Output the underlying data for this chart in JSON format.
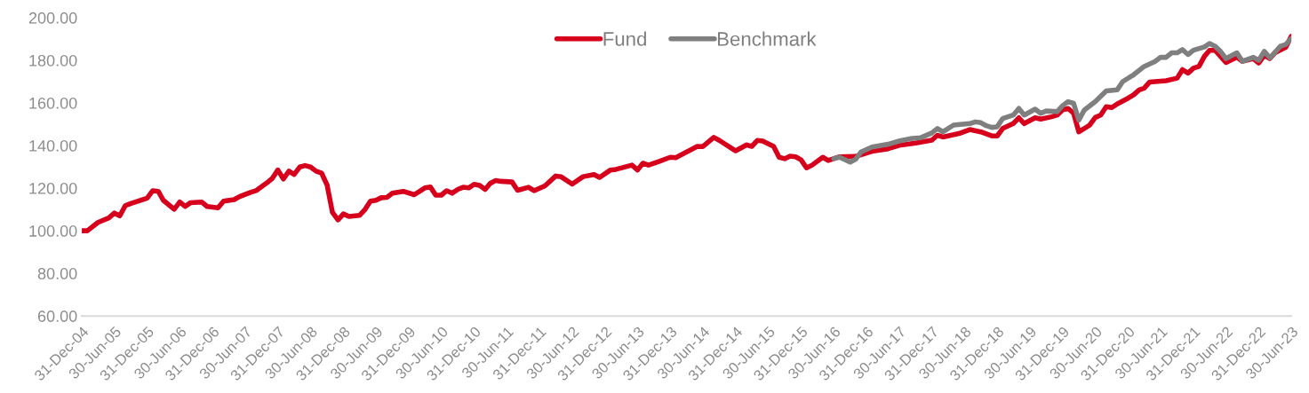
{
  "chart_data": {
    "type": "line",
    "series": [
      {
        "name": "Fund",
        "color": "#d7001c",
        "x": [
          "2004-12",
          "2005-01",
          "2005-03",
          "2005-05",
          "2005-06",
          "2005-07",
          "2005-08",
          "2005-09",
          "2005-12",
          "2006-01",
          "2006-02",
          "2006-03",
          "2006-05",
          "2006-06",
          "2006-07",
          "2006-08",
          "2006-10",
          "2006-11",
          "2007-01",
          "2007-02",
          "2007-04",
          "2007-05",
          "2007-07",
          "2007-08",
          "2007-10",
          "2007-11",
          "2007-12",
          "2008-01",
          "2008-02",
          "2008-03",
          "2008-04",
          "2008-05",
          "2008-06",
          "2008-07",
          "2008-08",
          "2008-09",
          "2008-10",
          "2008-11",
          "2008-12",
          "2009-01",
          "2009-03",
          "2009-04",
          "2009-05",
          "2009-06",
          "2009-07",
          "2009-08",
          "2009-09",
          "2009-11",
          "2010-01",
          "2010-03",
          "2010-04",
          "2010-05",
          "2010-06",
          "2010-07",
          "2010-08",
          "2010-09",
          "2010-10",
          "2010-11",
          "2010-12",
          "2011-01",
          "2011-02",
          "2011-03",
          "2011-04",
          "2011-05",
          "2011-07",
          "2011-08",
          "2011-10",
          "2011-11",
          "2012-01",
          "2012-03",
          "2012-04",
          "2012-06",
          "2012-08",
          "2012-10",
          "2012-11",
          "2013-01",
          "2013-02",
          "2013-05",
          "2013-06",
          "2013-07",
          "2013-08",
          "2013-10",
          "2013-12",
          "2014-01",
          "2014-05",
          "2014-06",
          "2014-08",
          "2014-09",
          "2014-12",
          "2015-02",
          "2015-03",
          "2015-04",
          "2015-05",
          "2015-07",
          "2015-08",
          "2015-09",
          "2015-10",
          "2015-11",
          "2015-12",
          "2016-01",
          "2016-02",
          "2016-04",
          "2016-05",
          "2016-07",
          "2016-10",
          "2017-01",
          "2017-04",
          "2017-06",
          "2017-09",
          "2017-12",
          "2018-01",
          "2018-02",
          "2018-05",
          "2018-07",
          "2018-09",
          "2018-11",
          "2018-12",
          "2019-01",
          "2019-03",
          "2019-04",
          "2019-05",
          "2019-07",
          "2019-08",
          "2019-10",
          "2019-11",
          "2019-12",
          "2020-01",
          "2020-02",
          "2020-03",
          "2020-05",
          "2020-06",
          "2020-07",
          "2020-08",
          "2020-09",
          "2020-10",
          "2020-12",
          "2021-01",
          "2021-02",
          "2021-03",
          "2021-04",
          "2021-07",
          "2021-09",
          "2021-10",
          "2021-11",
          "2021-12",
          "2022-01",
          "2022-02",
          "2022-03",
          "2022-04",
          "2022-06",
          "2022-08",
          "2022-09",
          "2022-11",
          "2022-12",
          "2023-01",
          "2023-02",
          "2023-03",
          "2023-05",
          "2023-06"
        ],
        "values": [
          100,
          100,
          103.9,
          106,
          108.3,
          107,
          111.8,
          112.8,
          115.3,
          118.8,
          118.5,
          114.3,
          110.1,
          113.5,
          111.4,
          113.2,
          113.5,
          111.4,
          110.8,
          113.9,
          114.6,
          116,
          118,
          118.8,
          122.5,
          124.7,
          128.5,
          124.3,
          128,
          126.4,
          129.9,
          130.6,
          129.9,
          128,
          127.1,
          121.5,
          108.6,
          105.1,
          107.9,
          106.7,
          107.2,
          110,
          113.9,
          114.3,
          115.5,
          115.7,
          117.6,
          118.5,
          116.9,
          120.1,
          120.5,
          116.7,
          116.7,
          118.8,
          117.6,
          119.4,
          120.4,
          120.1,
          121.8,
          121.3,
          119.4,
          122.2,
          123.6,
          123.2,
          122.9,
          119,
          120.4,
          118.8,
          121.1,
          125.7,
          125.3,
          121.9,
          125.4,
          126.4,
          125,
          128.5,
          128.8,
          130.8,
          128.5,
          131.7,
          130.8,
          132.6,
          134.5,
          134.3,
          139.6,
          139.5,
          143.8,
          142.4,
          137.5,
          140.3,
          139.6,
          142.4,
          142.1,
          139.6,
          134.5,
          133.8,
          135,
          134.7,
          133.3,
          129.5,
          130.8,
          134.5,
          133,
          134.7,
          134.9,
          137.3,
          138.5,
          140.1,
          141.2,
          142.5,
          144.8,
          144,
          145.6,
          147.5,
          146.4,
          144.5,
          144.5,
          148,
          150.3,
          153,
          150.3,
          153,
          152.4,
          153.5,
          154.3,
          156.7,
          157.4,
          155.1,
          146.4,
          149.6,
          153.2,
          154.3,
          158.2,
          157.8,
          159.5,
          162.2,
          163.8,
          166.1,
          166.9,
          169.8,
          170.4,
          171.6,
          175.6,
          174,
          176.3,
          177.1,
          181.9,
          184.7,
          184.7,
          179,
          181.4,
          179.5,
          180.8,
          178.7,
          182.3,
          180.8,
          183.5,
          186.1,
          191.3
        ]
      },
      {
        "name": "Benchmark",
        "color": "#7f7f7f",
        "x": [
          "2016-06",
          "2016-07",
          "2016-09",
          "2016-10",
          "2016-11",
          "2017-01",
          "2017-04",
          "2017-06",
          "2017-08",
          "2017-10",
          "2017-12",
          "2018-01",
          "2018-02",
          "2018-04",
          "2018-07",
          "2018-08",
          "2018-09",
          "2018-10",
          "2018-11",
          "2018-12",
          "2019-01",
          "2019-03",
          "2019-04",
          "2019-05",
          "2019-07",
          "2019-08",
          "2019-09",
          "2019-11",
          "2019-12",
          "2020-01",
          "2020-02",
          "2020-03",
          "2020-04",
          "2020-06",
          "2020-08",
          "2020-10",
          "2020-11",
          "2021-01",
          "2021-03",
          "2021-05",
          "2021-06",
          "2021-07",
          "2021-08",
          "2021-09",
          "2021-10",
          "2021-11",
          "2021-12",
          "2022-02",
          "2022-03",
          "2022-04",
          "2022-05",
          "2022-06",
          "2022-08",
          "2022-09",
          "2022-11",
          "2022-12",
          "2023-01",
          "2023-02",
          "2023-04",
          "2023-05",
          "2023-06"
        ],
        "values": [
          133.8,
          134.6,
          132.2,
          133.5,
          137,
          139.3,
          140.6,
          142.1,
          143.2,
          143.7,
          145.9,
          148,
          146.4,
          149.6,
          150.3,
          151.1,
          150.7,
          149.3,
          148.5,
          148.8,
          152.7,
          154.3,
          157.4,
          154.3,
          157.1,
          155.1,
          156.2,
          155.9,
          158.7,
          160.6,
          159.8,
          151.9,
          156.7,
          160.6,
          165.6,
          166.1,
          170,
          173.2,
          177.1,
          179.5,
          181.4,
          181.4,
          183.5,
          183.5,
          185,
          182.7,
          184.7,
          186.3,
          187.9,
          186.6,
          184.2,
          180.8,
          183.5,
          179.5,
          181.4,
          180,
          184.2,
          181.1,
          186.6,
          187.4,
          190.2
        ]
      }
    ],
    "xlim": [
      "2004-12",
      "2023-06"
    ],
    "xticks": [
      {
        "value": "2004-12",
        "label": "31-Dec-04"
      },
      {
        "value": "2005-06",
        "label": "30-Jun-05"
      },
      {
        "value": "2005-12",
        "label": "31-Dec-05"
      },
      {
        "value": "2006-06",
        "label": "30-Jun-06"
      },
      {
        "value": "2006-12",
        "label": "31-Dec-06"
      },
      {
        "value": "2007-06",
        "label": "30-Jun-07"
      },
      {
        "value": "2007-12",
        "label": "31-Dec-07"
      },
      {
        "value": "2008-06",
        "label": "30-Jun-08"
      },
      {
        "value": "2008-12",
        "label": "31-Dec-08"
      },
      {
        "value": "2009-06",
        "label": "30-Jun-09"
      },
      {
        "value": "2009-12",
        "label": "31-Dec-09"
      },
      {
        "value": "2010-06",
        "label": "30-Jun-10"
      },
      {
        "value": "2010-12",
        "label": "31-Dec-10"
      },
      {
        "value": "2011-06",
        "label": "30-Jun-11"
      },
      {
        "value": "2011-12",
        "label": "31-Dec-11"
      },
      {
        "value": "2012-06",
        "label": "30-Jun-12"
      },
      {
        "value": "2012-12",
        "label": "31-Dec-12"
      },
      {
        "value": "2013-06",
        "label": "30-Jun-13"
      },
      {
        "value": "2013-12",
        "label": "31-Dec-13"
      },
      {
        "value": "2014-06",
        "label": "30-Jun-14"
      },
      {
        "value": "2014-12",
        "label": "31-Dec-14"
      },
      {
        "value": "2015-06",
        "label": "30-Jun-15"
      },
      {
        "value": "2015-12",
        "label": "31-Dec-15"
      },
      {
        "value": "2016-06",
        "label": "30-Jun-16"
      },
      {
        "value": "2016-12",
        "label": "31-Dec-16"
      },
      {
        "value": "2017-06",
        "label": "30-Jun-17"
      },
      {
        "value": "2017-12",
        "label": "31-Dec-17"
      },
      {
        "value": "2018-06",
        "label": "30-Jun-18"
      },
      {
        "value": "2018-12",
        "label": "31-Dec-18"
      },
      {
        "value": "2019-06",
        "label": "30-Jun-19"
      },
      {
        "value": "2019-12",
        "label": "31-Dec-19"
      },
      {
        "value": "2020-06",
        "label": "30-Jun-20"
      },
      {
        "value": "2020-12",
        "label": "31-Dec-20"
      },
      {
        "value": "2021-06",
        "label": "30-Jun-21"
      },
      {
        "value": "2021-12",
        "label": "31-Dec-21"
      },
      {
        "value": "2022-06",
        "label": "30-Jun-22"
      },
      {
        "value": "2022-12",
        "label": "31-Dec-22"
      },
      {
        "value": "2023-06",
        "label": "30-Jun-23"
      }
    ],
    "ylim": [
      60,
      200
    ],
    "yticks": [
      {
        "value": 60,
        "label": "60.00"
      },
      {
        "value": 80,
        "label": "80.00"
      },
      {
        "value": 100,
        "label": "100.00"
      },
      {
        "value": 120,
        "label": "120.00"
      },
      {
        "value": 140,
        "label": "140.00"
      },
      {
        "value": 160,
        "label": "160.00"
      },
      {
        "value": 180,
        "label": "180.00"
      },
      {
        "value": 200,
        "label": "200.00"
      }
    ],
    "grid": false,
    "legend": "top",
    "marker": "none",
    "line_style": "solid"
  }
}
